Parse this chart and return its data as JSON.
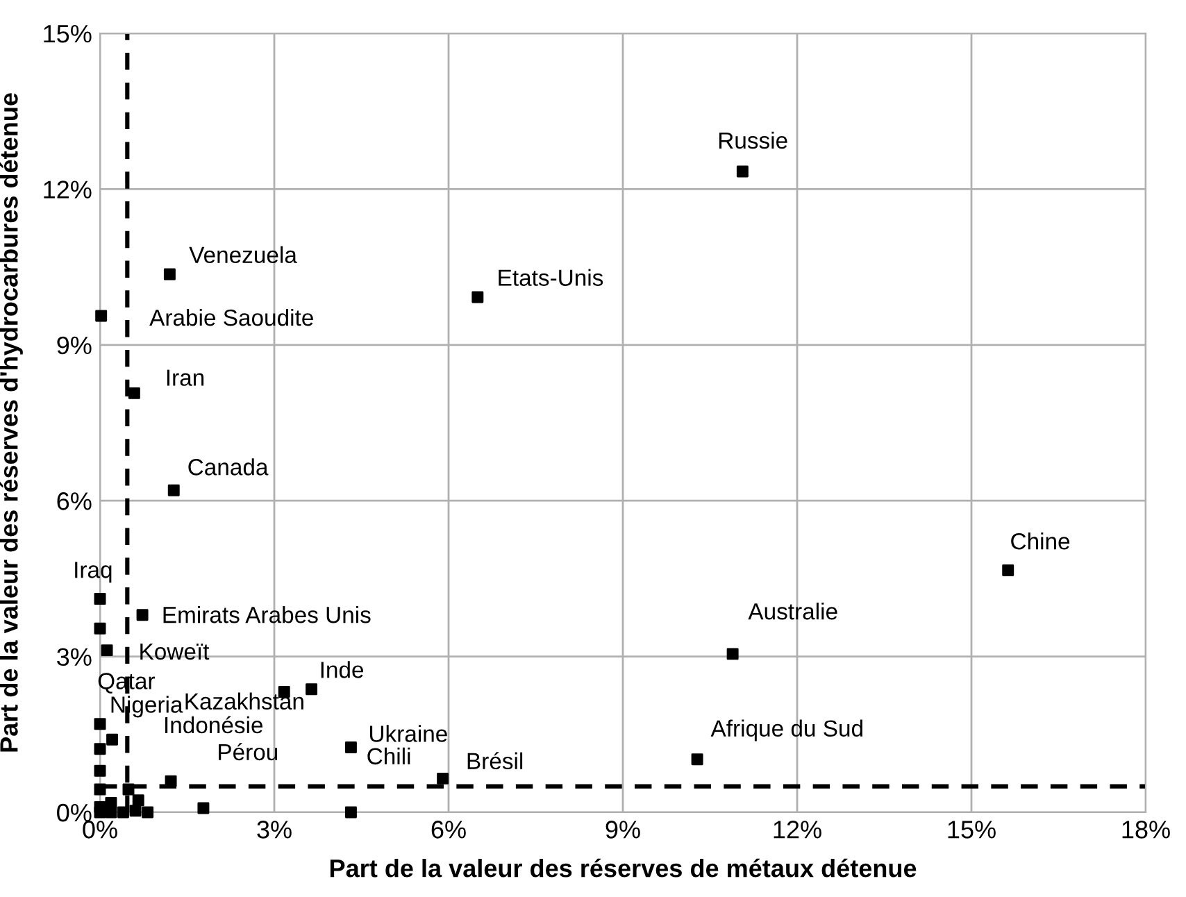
{
  "chart_data": {
    "type": "scatter",
    "xlabel": "Part de la valeur des réserves de métaux détenue",
    "ylabel": "Part de la valeur des réserves d'hydrocarbures détenue",
    "xlim": [
      0,
      18
    ],
    "ylim": [
      0,
      15
    ],
    "xticks": [
      {
        "value": 0,
        "label": "0%"
      },
      {
        "value": 3,
        "label": "3%"
      },
      {
        "value": 6,
        "label": "6%"
      },
      {
        "value": 9,
        "label": "9%"
      },
      {
        "value": 12,
        "label": "12%"
      },
      {
        "value": 15,
        "label": "15%"
      },
      {
        "value": 18,
        "label": "18%"
      }
    ],
    "yticks": [
      {
        "value": 0,
        "label": "0%"
      },
      {
        "value": 3,
        "label": "3%"
      },
      {
        "value": 6,
        "label": "6%"
      },
      {
        "value": 9,
        "label": "9%"
      },
      {
        "value": 12,
        "label": "12%"
      },
      {
        "value": 15,
        "label": "15%"
      }
    ],
    "grid": true,
    "marker": "square",
    "series": [
      {
        "color": "#000000",
        "x": [
          11.06,
          1.2,
          6.5,
          0.02,
          0.59,
          1.27,
          15.63,
          0,
          10.89,
          0.73,
          0,
          0.12,
          3.64,
          3.17,
          0,
          0.21,
          0,
          4.32,
          0,
          1.22,
          10.28,
          5.9,
          0,
          0.49,
          0.66,
          0.19,
          1.78,
          0.82,
          0.61,
          0.4,
          0,
          0.19,
          0,
          4.32
        ],
        "values": [
          12.34,
          10.36,
          9.92,
          9.56,
          8.07,
          6.2,
          4.66,
          4.11,
          3.05,
          3.8,
          3.54,
          3.12,
          2.37,
          2.32,
          1.7,
          1.4,
          1.22,
          1.25,
          0.8,
          0.6,
          1.02,
          0.65,
          0.44,
          0.44,
          0.23,
          0.18,
          0.08,
          0,
          0.03,
          0,
          0,
          0,
          0.1,
          0
        ]
      }
    ],
    "ref_lines": [
      {
        "axis": "x",
        "value": 0.47,
        "color": "#000000",
        "line_style": "dashed"
      },
      {
        "axis": "y",
        "value": 0.5,
        "color": "#000000",
        "line_style": "dashed"
      }
    ],
    "annotations": [
      {
        "text": "Russie",
        "x": 11.06,
        "y": 12.34
      },
      {
        "text": "Venezuela",
        "x": 1.2,
        "y": 10.36
      },
      {
        "text": "Etats-Unis",
        "x": 6.5,
        "y": 9.92
      },
      {
        "text": "Arabie Saoudite",
        "x": 0.02,
        "y": 9.56
      },
      {
        "text": "Iran",
        "x": 0.59,
        "y": 8.07
      },
      {
        "text": "Canada",
        "x": 1.27,
        "y": 6.2
      },
      {
        "text": "Chine",
        "x": 15.63,
        "y": 4.66
      },
      {
        "text": "Iraq",
        "x": 0,
        "y": 4.11
      },
      {
        "text": "Australie",
        "x": 10.89,
        "y": 3.05
      },
      {
        "text": "Emirats Arabes Unis",
        "x": 0.73,
        "y": 3.8
      },
      {
        "text": "Koweït",
        "x": 0,
        "y": 3.54
      },
      {
        "text": "Qatar",
        "x": 0.12,
        "y": 3.12
      },
      {
        "text": "Inde",
        "x": 3.64,
        "y": 2.37
      },
      {
        "text": "Kazakhstan",
        "x": 3.17,
        "y": 2.32
      },
      {
        "text": "Nigeria",
        "x": 0,
        "y": 1.7
      },
      {
        "text": "Ukraine",
        "x": 4.32,
        "y": 1.25
      },
      {
        "text": "Afrique du Sud",
        "x": 10.28,
        "y": 1.02
      },
      {
        "text": "Indonésie",
        "x": 1.22,
        "y": 0.6
      },
      {
        "text": "Brésil",
        "x": 5.9,
        "y": 0.65
      },
      {
        "text": "Pérou",
        "x": 1.78,
        "y": 0.08
      },
      {
        "text": "Chili",
        "x": 4.32,
        "y": 0
      }
    ]
  }
}
